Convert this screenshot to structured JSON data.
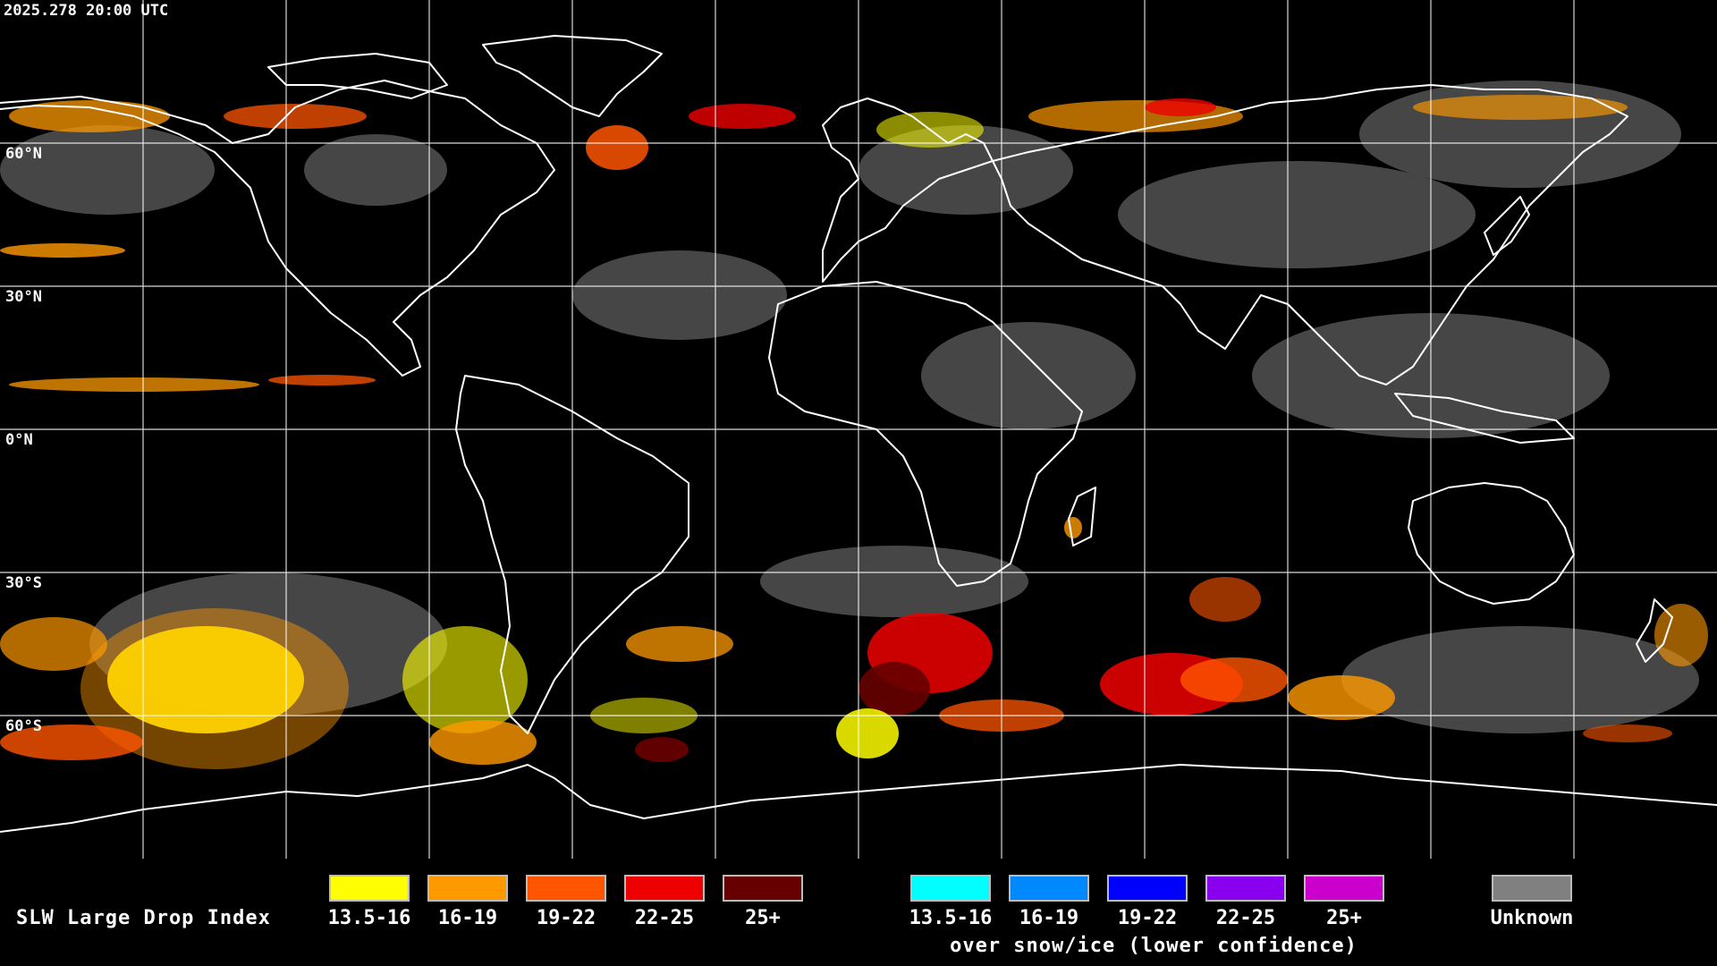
{
  "timestamp": "2025.278 20:00 UTC",
  "latitude_labels": [
    "60°N",
    "30°N",
    "0°N",
    "30°S",
    "60°S"
  ],
  "legend": {
    "title": "SLW Large Drop Index",
    "liquid": [
      {
        "label": "13.5-16",
        "color": "#ffff00"
      },
      {
        "label": "16-19",
        "color": "#ff9900"
      },
      {
        "label": "19-22",
        "color": "#ff5500"
      },
      {
        "label": "22-25",
        "color": "#ee0000"
      },
      {
        "label": "25+",
        "color": "#660000"
      }
    ],
    "snow_ice": [
      {
        "label": "13.5-16",
        "color": "#00ffff"
      },
      {
        "label": "16-19",
        "color": "#0088ff"
      },
      {
        "label": "19-22",
        "color": "#0000ff"
      },
      {
        "label": "22-25",
        "color": "#8800ee"
      },
      {
        "label": "25+",
        "color": "#cc00cc"
      }
    ],
    "snow_ice_caption": "over snow/ice (lower confidence)",
    "unknown": {
      "label": "Unknown",
      "color": "#808080"
    }
  },
  "colors": {
    "background": "#000000",
    "coastline": "#ffffff",
    "grid": "#ffffff"
  }
}
